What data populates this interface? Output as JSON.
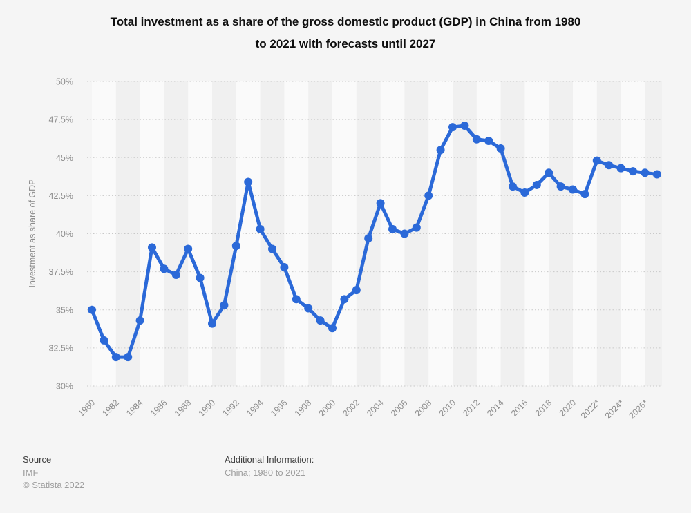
{
  "title": {
    "full": "Total investment as a share of the gross domestic product (GDP) in China from 1980 to 2021 with forecasts until 2027",
    "line1": "Total investment as a share of the gross domestic product (GDP) in China from 1980",
    "line2": "to 2021 with forecasts until 2027"
  },
  "footer": {
    "source_label": "Source",
    "source_value": "IMF",
    "copyright": "© Statista 2022",
    "additional_label": "Additional Information:",
    "additional_value": "China; 1980 to 2021"
  },
  "colors": {
    "line": "#2b69d8",
    "background": "#f5f5f5",
    "stripe_light": "#fafafa",
    "stripe_dark": "#f0f0f0",
    "gridline": "#c8c8c8",
    "axis_text": "#8c8c8c",
    "title_text": "#0e0e0e",
    "footer_label": "#3f3f3f",
    "footer_muted": "#9e9e9e"
  },
  "chart_data": {
    "type": "line",
    "title": "Total investment as a share of the gross domestic product (GDP) in China from 1980 to 2021 with forecasts until 2027",
    "x": [
      1980,
      1981,
      1982,
      1983,
      1984,
      1985,
      1986,
      1987,
      1988,
      1989,
      1990,
      1991,
      1992,
      1993,
      1994,
      1995,
      1996,
      1997,
      1998,
      1999,
      2000,
      2001,
      2002,
      2003,
      2004,
      2005,
      2006,
      2007,
      2008,
      2009,
      2010,
      2011,
      2012,
      2013,
      2014,
      2015,
      2016,
      2017,
      2018,
      2019,
      2020,
      2021,
      2022,
      2023,
      2024,
      2025,
      2026,
      2027
    ],
    "values": [
      35.0,
      33.0,
      31.9,
      31.9,
      34.3,
      39.1,
      37.7,
      37.3,
      39.0,
      37.1,
      34.1,
      35.3,
      39.2,
      43.4,
      40.3,
      39.0,
      37.8,
      35.7,
      35.1,
      34.3,
      33.8,
      35.7,
      36.3,
      39.7,
      42.0,
      40.3,
      40.0,
      40.4,
      42.5,
      45.5,
      47.0,
      47.1,
      46.2,
      46.1,
      45.6,
      43.1,
      42.7,
      43.2,
      44.0,
      43.1,
      42.9,
      42.6,
      44.8,
      44.5,
      44.3,
      44.1,
      44.0,
      43.9
    ],
    "series_name": "Investment as share of GDP",
    "xlabel": "",
    "ylabel": "Investment as share of GDP",
    "ylim": [
      30,
      50
    ],
    "ytick_step": 2.5,
    "ytick_labels": [
      "50%",
      "47.5%",
      "45%",
      "42.5%",
      "40%",
      "37.5%",
      "35%",
      "32.5%",
      "30%"
    ],
    "xtick_labels": [
      "1980",
      "1982",
      "1984",
      "1986",
      "1988",
      "1990",
      "1992",
      "1994",
      "1996",
      "1998",
      "2000",
      "2002",
      "2004",
      "2006",
      "2008",
      "2010",
      "2012",
      "2014",
      "2016",
      "2018",
      "2020",
      "2022*",
      "2024*",
      "2026*"
    ],
    "xtick_every": 2,
    "forecast_from_x": 2022,
    "grid": "horizontal-dotted",
    "legend_position": "none",
    "marker": "circle"
  }
}
